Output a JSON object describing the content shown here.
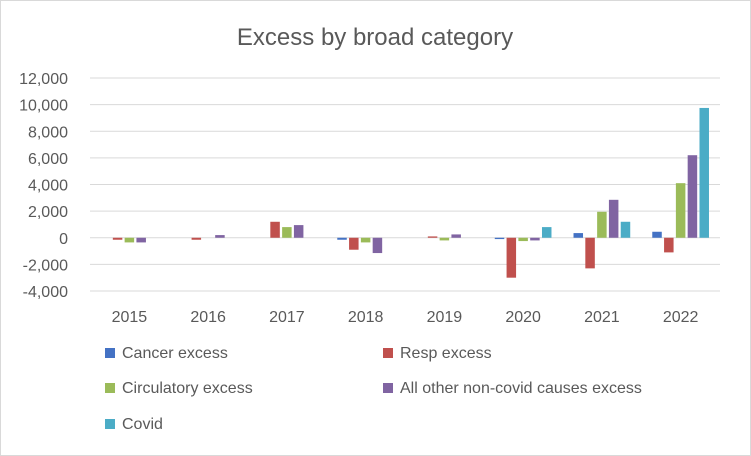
{
  "chart_data": {
    "type": "bar",
    "title": "Excess by broad category",
    "xlabel": "",
    "ylabel": "",
    "categories": [
      "2015",
      "2016",
      "2017",
      "2018",
      "2019",
      "2020",
      "2021",
      "2022"
    ],
    "ylim": [
      -4000,
      12000
    ],
    "yticks": [
      12000,
      10000,
      8000,
      6000,
      4000,
      2000,
      0,
      -2000,
      -4000
    ],
    "ytick_labels": [
      "12,000",
      "10,000",
      "8,000",
      "6,000",
      "4,000",
      "2,000",
      "0",
      "-2,000",
      "-4,000"
    ],
    "grid": true,
    "legend_position": "bottom",
    "series": [
      {
        "name": "Cancer excess",
        "color": "#4472c4",
        "values": [
          0,
          0,
          0,
          -150,
          0,
          -100,
          350,
          450
        ]
      },
      {
        "name": "Resp excess",
        "color": "#c0504d",
        "values": [
          -150,
          -150,
          1200,
          -900,
          100,
          -3000,
          -2300,
          -1100
        ]
      },
      {
        "name": "Circulatory excess",
        "color": "#9bbb59",
        "values": [
          -350,
          0,
          800,
          -350,
          -200,
          -250,
          1950,
          4100
        ]
      },
      {
        "name": "All other non-covid causes excess",
        "color": "#8064a2",
        "values": [
          -350,
          200,
          950,
          -1150,
          250,
          -200,
          2850,
          6200
        ]
      },
      {
        "name": "Covid",
        "color": "#4bacc6",
        "values": [
          0,
          0,
          0,
          0,
          0,
          800,
          1200,
          9750
        ]
      }
    ]
  }
}
